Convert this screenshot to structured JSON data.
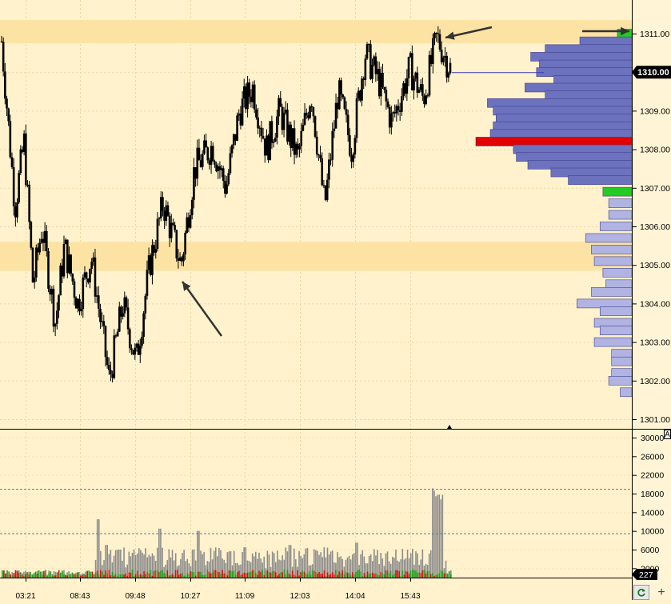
{
  "chart_data": [
    {
      "type": "candlestick",
      "panel": "price",
      "ylim": [
        1300.8,
        1311.35
      ],
      "y_ticks": [
        1301.0,
        1302.0,
        1303.0,
        1304.0,
        1305.0,
        1306.0,
        1307.0,
        1308.0,
        1309.0,
        1310.0,
        1311.0
      ],
      "y_tick_labels": [
        "1301.00",
        "1302.00",
        "1303.00",
        "1304.00",
        "1305.00",
        "1306.00",
        "1307.00",
        "1308.00",
        "1309.00",
        "1310.00",
        "1311.00"
      ],
      "current_price": 1310.0,
      "current_price_label": "1310.00",
      "price_path": [
        [
          0,
          1310.8
        ],
        [
          0.03,
          1306.5
        ],
        [
          0.05,
          1308.2
        ],
        [
          0.07,
          1304.5
        ],
        [
          0.09,
          1306.0
        ],
        [
          0.12,
          1303.5
        ],
        [
          0.14,
          1305.5
        ],
        [
          0.17,
          1304.0
        ],
        [
          0.2,
          1305.2
        ],
        [
          0.24,
          1302.0
        ],
        [
          0.27,
          1304.0
        ],
        [
          0.3,
          1302.5
        ],
        [
          0.33,
          1305.0
        ],
        [
          0.36,
          1306.6
        ],
        [
          0.4,
          1305.0
        ],
        [
          0.43,
          1307.5
        ],
        [
          0.47,
          1308.1
        ],
        [
          0.5,
          1307.0
        ],
        [
          0.53,
          1309.0
        ],
        [
          0.56,
          1309.6
        ],
        [
          0.59,
          1308.0
        ],
        [
          0.62,
          1309.0
        ],
        [
          0.66,
          1307.8
        ],
        [
          0.69,
          1309.5
        ],
        [
          0.72,
          1306.5
        ],
        [
          0.75,
          1309.5
        ],
        [
          0.78,
          1308.0
        ],
        [
          0.81,
          1310.5
        ],
        [
          0.84,
          1309.8
        ],
        [
          0.87,
          1308.7
        ],
        [
          0.91,
          1310.1
        ],
        [
          0.94,
          1309.3
        ],
        [
          0.97,
          1310.9
        ],
        [
          1,
          1310.1
        ]
      ],
      "volume_profile": [
        {
          "price": 1311.0,
          "volume": 4,
          "highlight": "green"
        },
        {
          "price": 1310.8,
          "volume": 18
        },
        {
          "price": 1310.6,
          "volume": 30
        },
        {
          "price": 1310.4,
          "volume": 35
        },
        {
          "price": 1310.2,
          "volume": 32
        },
        {
          "price": 1310.0,
          "volume": 33
        },
        {
          "price": 1309.8,
          "volume": 27
        },
        {
          "price": 1309.6,
          "volume": 37
        },
        {
          "price": 1309.4,
          "volume": 30
        },
        {
          "price": 1309.2,
          "volume": 50
        },
        {
          "price": 1309.0,
          "volume": 48
        },
        {
          "price": 1308.8,
          "volume": 47
        },
        {
          "price": 1308.6,
          "volume": 48
        },
        {
          "price": 1308.4,
          "volume": 49
        },
        {
          "price": 1308.2,
          "volume": 54,
          "highlight": "red"
        },
        {
          "price": 1308.0,
          "volume": 41
        },
        {
          "price": 1307.8,
          "volume": 40
        },
        {
          "price": 1307.6,
          "volume": 36
        },
        {
          "price": 1307.4,
          "volume": 28
        },
        {
          "price": 1307.2,
          "volume": 22
        },
        {
          "price": 1306.9,
          "volume": 10,
          "highlight": "green"
        },
        {
          "price": 1306.6,
          "volume": 8
        },
        {
          "price": 1306.3,
          "volume": 8
        },
        {
          "price": 1306.0,
          "volume": 11
        },
        {
          "price": 1305.7,
          "volume": 16
        },
        {
          "price": 1305.4,
          "volume": 14
        },
        {
          "price": 1305.1,
          "volume": 13
        },
        {
          "price": 1304.8,
          "volume": 10
        },
        {
          "price": 1304.5,
          "volume": 9
        },
        {
          "price": 1304.3,
          "volume": 14
        },
        {
          "price": 1304.0,
          "volume": 19
        },
        {
          "price": 1303.8,
          "volume": 11
        },
        {
          "price": 1303.5,
          "volume": 13
        },
        {
          "price": 1303.3,
          "volume": 11
        },
        {
          "price": 1303.0,
          "volume": 13
        },
        {
          "price": 1302.7,
          "volume": 7
        },
        {
          "price": 1302.5,
          "volume": 7
        },
        {
          "price": 1302.2,
          "volume": 7
        },
        {
          "price": 1302.0,
          "volume": 8
        },
        {
          "price": 1301.7,
          "volume": 4
        }
      ],
      "highlight_zones": [
        [
          1310.75,
          1311.35
        ],
        [
          1304.85,
          1305.6
        ]
      ],
      "grid": true
    },
    {
      "type": "bar",
      "panel": "volume",
      "ylim": [
        0,
        31000
      ],
      "y_ticks": [
        2000,
        6000,
        10000,
        14000,
        18000,
        22000,
        26000,
        30000
      ],
      "y_tick_labels": [
        "2000",
        "6000",
        "10000",
        "14000",
        "18000",
        "22000",
        "26000",
        "30000"
      ],
      "reference_lines": [
        9500,
        19000
      ],
      "current_volume_label": "227",
      "spikes": [
        {
          "x": 0.214,
          "value": 12500
        },
        {
          "x": 0.232,
          "value": 7000
        },
        {
          "x": 0.26,
          "value": 6000
        },
        {
          "x": 0.35,
          "value": 10500
        },
        {
          "x": 0.436,
          "value": 10000
        },
        {
          "x": 0.54,
          "value": 6500
        },
        {
          "x": 0.64,
          "value": 7000
        },
        {
          "x": 0.79,
          "value": 7500
        },
        {
          "x": 0.965,
          "value": 20000
        },
        {
          "x": 0.98,
          "value": 18000
        }
      ],
      "baseline_level": 1500,
      "active_range": [
        0.205,
        0.99
      ],
      "x_tick_labels": [
        "03:21",
        "08:43",
        "09:48",
        "10:27",
        "11:09",
        "12:03",
        "14:04",
        "15:43"
      ],
      "x_ticks": [
        0.057,
        0.18,
        0.304,
        0.428,
        0.552,
        0.676,
        0.8,
        0.924
      ]
    }
  ],
  "toolbar": {
    "refresh_icon": "refresh-icon",
    "add_label": "+"
  },
  "axis_marker": "A",
  "colors": {
    "background": "#FFF2CC",
    "zone": "#FCE3A4",
    "candle": "#000000",
    "profile_dark": "#6D72BE",
    "profile_light": "#B1B4E2",
    "poc": "#E20000",
    "value_area_marker": "#22CC22",
    "volume_bar": "#8C8C8C",
    "volume_up": "#1E9E1E",
    "volume_down": "#D41010",
    "ref_line": "#4E84A8",
    "current_price_line": "#3A3AB0"
  }
}
